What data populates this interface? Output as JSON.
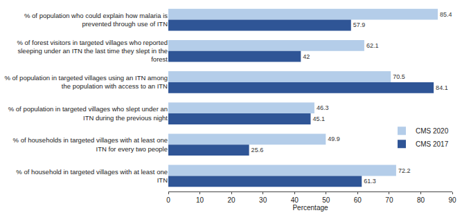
{
  "chart_data": {
    "type": "bar",
    "orientation": "horizontal",
    "x_label": "Percentage",
    "categories": [
      "% of population who could explain how malaria is prevented through use of ITN",
      "% of forest visitors in targeted villages who reported sleeping under an ITN the last time they slept in the forest",
      "% of population in targeted villages using an ITN among the population with access to an ITN",
      "% of population in targeted villages who slept under an ITN during the previous night",
      "% of households in targeted villages with at least one ITN for every two people",
      "% of household in targeted villages with at least one ITN"
    ],
    "series": [
      {
        "name": "CMS 2020",
        "color": "#b4cde9",
        "values": [
          85.4,
          62.1,
          70.5,
          46.3,
          49.9,
          72.2
        ]
      },
      {
        "name": "CMS 2017",
        "color": "#2f5596",
        "values": [
          57.9,
          42,
          84.1,
          45.1,
          25.6,
          61.3
        ]
      }
    ],
    "xlim": [
      0,
      90
    ],
    "xticks": [
      0,
      10,
      20,
      30,
      40,
      50,
      60,
      70,
      80,
      90
    ],
    "grid": false,
    "legend": "lower right",
    "data_labels": true
  }
}
